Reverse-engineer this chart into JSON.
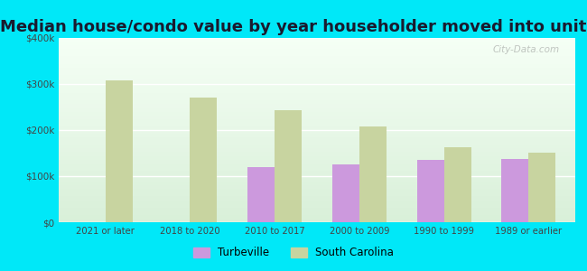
{
  "title": "Median house/condo value by year householder moved into unit",
  "categories": [
    "2021 or later",
    "2018 to 2020",
    "2010 to 2017",
    "2000 to 2009",
    "1990 to 1999",
    "1989 or earlier"
  ],
  "turbeville": [
    null,
    null,
    120000,
    125000,
    135000,
    138000
  ],
  "south_carolina": [
    308000,
    270000,
    243000,
    208000,
    163000,
    150000
  ],
  "turbeville_color": "#cc99dd",
  "sc_color": "#c8d4a0",
  "background_top": "#f5fff5",
  "background_bottom": "#d8efd8",
  "outer_background": "#00e8f8",
  "ylim": [
    0,
    400000
  ],
  "yticks": [
    0,
    100000,
    200000,
    300000,
    400000
  ],
  "ytick_labels": [
    "$0",
    "$100k",
    "$200k",
    "$300k",
    "$400k"
  ],
  "title_fontsize": 13,
  "bar_width": 0.32,
  "watermark": "City-Data.com"
}
